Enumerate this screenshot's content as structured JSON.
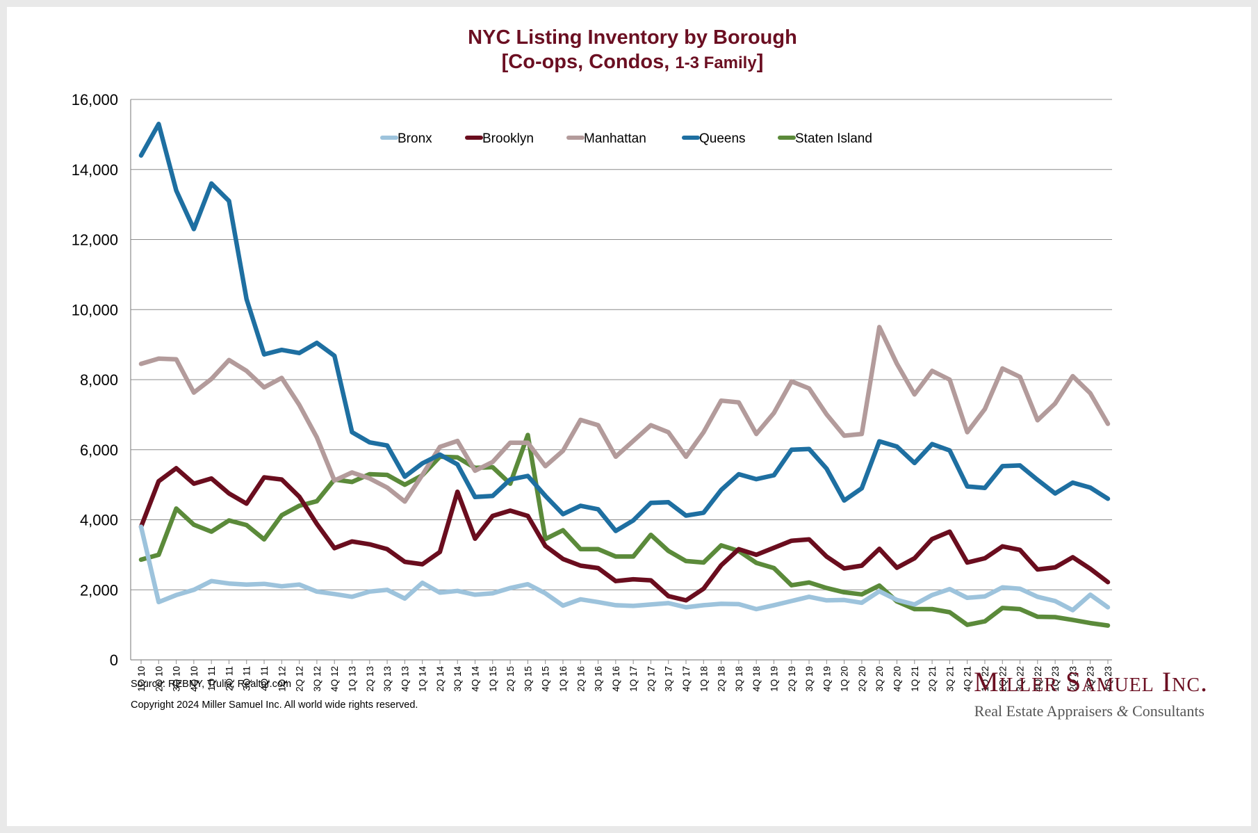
{
  "chart_data": {
    "type": "line",
    "title": "NYC Listing Inventory by Borough",
    "subtitle_main": "[Co-ops, Condos, ",
    "subtitle_small": "1-3 Family",
    "subtitle_end": "]",
    "ylim": [
      0,
      16000
    ],
    "y_ticks": [
      0,
      2000,
      4000,
      6000,
      8000,
      10000,
      12000,
      14000,
      16000
    ],
    "y_tick_labels": [
      "0",
      "2,000",
      "4,000",
      "6,000",
      "8,000",
      "10,000",
      "12,000",
      "14,000",
      "16,000"
    ],
    "grid": true,
    "legend_position": "top",
    "categories": [
      "1Q 10",
      "2Q 10",
      "3Q 10",
      "4Q 10",
      "1Q 11",
      "2Q 11",
      "3Q 11",
      "4Q 11",
      "1Q 12",
      "2Q 12",
      "3Q 12",
      "4Q 12",
      "1Q 13",
      "2Q 13",
      "3Q 13",
      "4Q 13",
      "1Q 14",
      "2Q 14",
      "3Q 14",
      "4Q 14",
      "1Q 15",
      "2Q 15",
      "3Q 15",
      "4Q 15",
      "1Q 16",
      "2Q 16",
      "3Q 16",
      "4Q 16",
      "1Q 17",
      "2Q 17",
      "3Q 17",
      "4Q 17",
      "1Q 18",
      "2Q 18",
      "3Q 18",
      "4Q 18",
      "1Q 19",
      "2Q 19",
      "3Q 19",
      "4Q 19",
      "1Q 20",
      "2Q 20",
      "3Q 20",
      "4Q 20",
      "1Q 21",
      "2Q 21",
      "3Q 21",
      "4Q 21",
      "1Q 22",
      "2Q 22",
      "3Q 22",
      "4Q 22",
      "1Q 23",
      "2Q 23",
      "3Q 23",
      "4Q 23"
    ],
    "series": [
      {
        "name": "Bronx",
        "color": "#9dc3dc",
        "values": [
          3800,
          1650,
          1850,
          2000,
          2250,
          2180,
          2150,
          2170,
          2100,
          2150,
          1950,
          1880,
          1800,
          1950,
          2000,
          1750,
          2200,
          1920,
          1970,
          1860,
          1900,
          2050,
          2160,
          1900,
          1550,
          1730,
          1650,
          1560,
          1540,
          1580,
          1620,
          1500,
          1560,
          1600,
          1590,
          1450,
          1560,
          1680,
          1800,
          1700,
          1710,
          1630,
          1960,
          1710,
          1580,
          1850,
          2020,
          1770,
          1810,
          2070,
          2030,
          1800,
          1680,
          1420,
          1860,
          1500
        ]
      },
      {
        "name": "Brooklyn",
        "color": "#6a0d1e",
        "values": [
          3800,
          5100,
          5470,
          5030,
          5180,
          4750,
          4460,
          5210,
          5150,
          4660,
          3880,
          3190,
          3380,
          3300,
          3160,
          2800,
          2730,
          3080,
          4800,
          3460,
          4110,
          4260,
          4110,
          3250,
          2880,
          2690,
          2620,
          2250,
          2300,
          2270,
          1820,
          1700,
          2030,
          2700,
          3160,
          3000,
          3200,
          3400,
          3440,
          2950,
          2610,
          2690,
          3170,
          2630,
          2900,
          3450,
          3660,
          2780,
          2900,
          3240,
          3140,
          2580,
          2640,
          2930,
          2600,
          2220
        ]
      },
      {
        "name": "Manhattan",
        "color": "#b39b9b",
        "values": [
          8450,
          8600,
          8580,
          7630,
          8020,
          8560,
          8250,
          7780,
          8050,
          7280,
          6350,
          5120,
          5350,
          5180,
          4920,
          4520,
          5280,
          6080,
          6250,
          5400,
          5650,
          6200,
          6200,
          5530,
          5970,
          6850,
          6700,
          5800,
          6250,
          6700,
          6500,
          5800,
          6500,
          7400,
          7350,
          6450,
          7050,
          7950,
          7750,
          7010,
          6400,
          6450,
          9500,
          8450,
          7580,
          8250,
          8000,
          6500,
          7160,
          8320,
          8080,
          6840,
          7320,
          8100,
          7610,
          6740
        ]
      },
      {
        "name": "Queens",
        "color": "#1e6fa1",
        "values": [
          14400,
          15300,
          13400,
          12300,
          13600,
          13100,
          10300,
          8720,
          8850,
          8760,
          9050,
          8680,
          6500,
          6210,
          6120,
          5230,
          5610,
          5860,
          5580,
          4650,
          4680,
          5150,
          5250,
          4680,
          4160,
          4400,
          4300,
          3680,
          3980,
          4480,
          4500,
          4120,
          4200,
          4850,
          5300,
          5160,
          5270,
          6000,
          6020,
          5460,
          4550,
          4900,
          6240,
          6090,
          5620,
          6160,
          5980,
          4950,
          4910,
          5530,
          5550,
          5140,
          4750,
          5060,
          4920,
          4600
        ]
      },
      {
        "name": "Staten Island",
        "color": "#5b8a3a",
        "values": [
          2860,
          3000,
          4320,
          3860,
          3660,
          3980,
          3850,
          3440,
          4130,
          4400,
          4530,
          5150,
          5080,
          5300,
          5280,
          5000,
          5270,
          5800,
          5780,
          5480,
          5500,
          5030,
          6420,
          3450,
          3700,
          3160,
          3160,
          2950,
          2950,
          3570,
          3110,
          2820,
          2780,
          3270,
          3110,
          2770,
          2620,
          2130,
          2210,
          2050,
          1930,
          1870,
          2120,
          1670,
          1450,
          1450,
          1360,
          1000,
          1100,
          1480,
          1450,
          1230,
          1220,
          1140,
          1050,
          980
        ]
      }
    ]
  },
  "footer": {
    "source": "Source: REBNY, Trulia, Realtor.com",
    "copyright": "Copyright 2024 Miller Samuel Inc.  All world wide rights reserved.",
    "logo_name": "Miller Samuel Inc.",
    "logo_tagline_a": "Real Estate Appraisers ",
    "logo_tagline_amp": "&",
    "logo_tagline_b": " Consultants"
  }
}
